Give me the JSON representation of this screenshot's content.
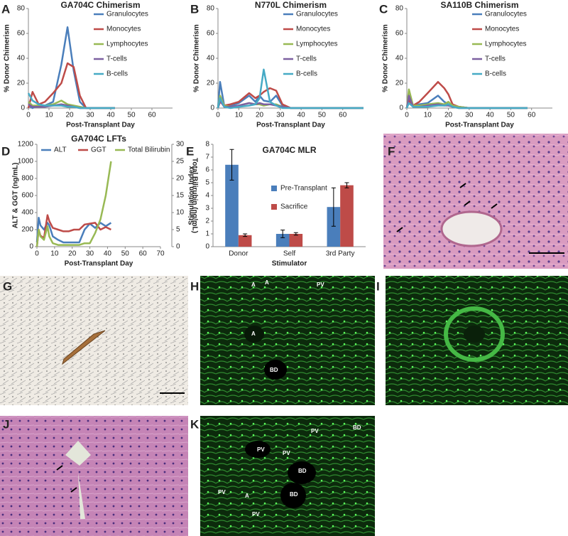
{
  "chart_data": [
    {
      "type": "line",
      "title": "GA704C Chimerism",
      "xlabel": "Post-Transplant Day",
      "ylabel": "% Donor Chimerism",
      "x": [
        0,
        2,
        5,
        8,
        12,
        16,
        19,
        22,
        25,
        28,
        31,
        35,
        42
      ],
      "xlim": [
        0,
        70
      ],
      "xticks": [
        0,
        10,
        20,
        30,
        40,
        50,
        60
      ],
      "ylim": [
        0,
        80
      ],
      "yticks": [
        0,
        20,
        40,
        60,
        80
      ],
      "legend": "upper right",
      "series": [
        {
          "name": "Granulocytes",
          "color": "#4a7ebb",
          "values": [
            2,
            0,
            2,
            2,
            5,
            35,
            65,
            30,
            5,
            0,
            0,
            0,
            0
          ]
        },
        {
          "name": "Monocytes",
          "color": "#be4b48",
          "values": [
            0,
            13,
            3,
            5,
            12,
            20,
            36,
            33,
            10,
            0,
            0,
            0,
            0
          ]
        },
        {
          "name": "Lymphocytes",
          "color": "#98b954",
          "values": [
            5,
            2,
            2,
            2,
            3,
            6,
            3,
            2,
            1,
            0,
            0,
            0,
            0
          ]
        },
        {
          "name": "T-cells",
          "color": "#7d60a0",
          "values": [
            3,
            1,
            1,
            1,
            2,
            3,
            2,
            1,
            0,
            0,
            0,
            0,
            0
          ]
        },
        {
          "name": "B-cells",
          "color": "#46aac5",
          "values": [
            12,
            6,
            3,
            2,
            2,
            2,
            1,
            1,
            0,
            0,
            0,
            0,
            0
          ]
        }
      ]
    },
    {
      "type": "line",
      "title": "N770L Chimerism",
      "xlabel": "Post-Transplant Day",
      "ylabel": "% Donor Chimerism",
      "x": [
        0,
        1,
        3,
        6,
        10,
        15,
        18,
        20,
        22,
        25,
        28,
        31,
        35,
        42,
        50,
        70
      ],
      "xlim": [
        0,
        70
      ],
      "xticks": [
        0,
        10,
        20,
        30,
        40,
        50,
        60
      ],
      "ylim": [
        0,
        80
      ],
      "yticks": [
        0,
        20,
        40,
        60,
        80
      ],
      "legend": "upper right",
      "series": [
        {
          "name": "Granulocytes",
          "color": "#4a7ebb",
          "values": [
            0,
            21,
            2,
            2,
            4,
            10,
            5,
            10,
            6,
            5,
            10,
            2,
            0,
            0,
            0,
            0
          ]
        },
        {
          "name": "Monocytes",
          "color": "#be4b48",
          "values": [
            0,
            5,
            2,
            3,
            5,
            12,
            8,
            10,
            13,
            16,
            14,
            3,
            0,
            0,
            0,
            0
          ]
        },
        {
          "name": "Lymphocytes",
          "color": "#98b954",
          "values": [
            0,
            10,
            2,
            1,
            2,
            4,
            3,
            3,
            2,
            3,
            3,
            1,
            0,
            0,
            0,
            0
          ]
        },
        {
          "name": "T-cells",
          "color": "#7d60a0",
          "values": [
            0,
            6,
            1,
            1,
            2,
            4,
            3,
            4,
            3,
            3,
            2,
            1,
            0,
            0,
            0,
            0
          ]
        },
        {
          "name": "B-cells",
          "color": "#46aac5",
          "values": [
            0,
            8,
            1,
            0,
            1,
            2,
            3,
            8,
            31,
            5,
            2,
            0,
            0,
            0,
            0,
            0
          ]
        }
      ]
    },
    {
      "type": "line",
      "title": "SA110B Chimerism",
      "xlabel": "Post-Transplant Day",
      "ylabel": "% Donor Chimerism",
      "x": [
        0,
        1,
        3,
        6,
        10,
        15,
        18,
        20,
        22,
        25,
        30,
        40,
        58
      ],
      "xlim": [
        0,
        70
      ],
      "xticks": [
        0,
        10,
        20,
        30,
        40,
        50,
        60
      ],
      "ylim": [
        0,
        80
      ],
      "yticks": [
        0,
        20,
        40,
        60,
        80
      ],
      "legend": "upper right",
      "series": [
        {
          "name": "Granulocytes",
          "color": "#4a7ebb",
          "values": [
            0,
            8,
            2,
            3,
            4,
            10,
            5,
            3,
            2,
            1,
            0,
            0,
            0
          ]
        },
        {
          "name": "Monocytes",
          "color": "#be4b48",
          "values": [
            0,
            6,
            2,
            5,
            12,
            21,
            16,
            11,
            3,
            1,
            0,
            0,
            0
          ]
        },
        {
          "name": "Lymphocytes",
          "color": "#98b954",
          "values": [
            0,
            15,
            2,
            2,
            3,
            4,
            3,
            5,
            2,
            1,
            0,
            0,
            0
          ]
        },
        {
          "name": "T-cells",
          "color": "#7d60a0",
          "values": [
            0,
            10,
            1,
            1,
            2,
            3,
            2,
            2,
            1,
            0,
            0,
            0,
            0
          ]
        },
        {
          "name": "B-cells",
          "color": "#46aac5",
          "values": [
            0,
            4,
            1,
            1,
            1,
            2,
            2,
            3,
            1,
            0,
            0,
            0,
            0
          ]
        }
      ]
    },
    {
      "type": "line",
      "title": "GA704C LFTs",
      "xlabel": "Post-Transplant Day",
      "ylabel": "ALT & GGT (ng/mL)",
      "y2label": "Total Bilirubin (ng/mL)",
      "x": [
        0,
        1,
        2,
        4,
        6,
        7,
        9,
        12,
        15,
        18,
        21,
        24,
        27,
        30,
        33,
        36,
        39,
        42
      ],
      "xlim": [
        0,
        70
      ],
      "xticks": [
        0,
        10,
        20,
        30,
        40,
        50,
        60,
        70
      ],
      "ylim": [
        0,
        1200
      ],
      "yticks": [
        0,
        200,
        400,
        600,
        800,
        1000,
        1200
      ],
      "y2lim": [
        0,
        30
      ],
      "y2ticks": [
        0,
        5,
        10,
        15,
        20,
        25,
        30
      ],
      "legend": "top",
      "series": [
        {
          "name": "ALT",
          "color": "#4a7ebb",
          "values": [
            50,
            340,
            250,
            200,
            280,
            250,
            120,
            80,
            50,
            50,
            50,
            50,
            200,
            270,
            220,
            280,
            240,
            280
          ]
        },
        {
          "name": "GGT",
          "color": "#be4b48",
          "values": [
            0,
            200,
            130,
            100,
            370,
            300,
            220,
            200,
            180,
            180,
            200,
            200,
            260,
            270,
            280,
            200,
            230,
            200
          ]
        },
        {
          "name": "Total Bilirubin",
          "color": "#98b954",
          "axis": "y2",
          "values": [
            0,
            5,
            3,
            2,
            6,
            3,
            1,
            0.5,
            0.5,
            0.5,
            0.5,
            0.5,
            1,
            1,
            4,
            8,
            15,
            25
          ]
        }
      ]
    },
    {
      "type": "bar",
      "title": "GA704C MLR",
      "xlabel": "Stimulator",
      "ylabel": "Stimulation Index",
      "categories": [
        "Donor",
        "Self",
        "3rd Party"
      ],
      "ylim": [
        0,
        8
      ],
      "yticks": [
        0,
        1,
        2,
        3,
        4,
        5,
        6,
        7,
        8
      ],
      "legend": "right",
      "series": [
        {
          "name": "Pre-Transplant",
          "color": "#4a7ebb",
          "values": [
            6.4,
            1.0,
            3.1
          ],
          "errors": [
            1.2,
            0.3,
            1.5
          ]
        },
        {
          "name": "Sacrifice",
          "color": "#be4b48",
          "values": [
            0.9,
            1.0,
            4.8
          ],
          "errors": [
            0.1,
            0.1,
            0.2
          ]
        }
      ]
    }
  ],
  "panel_letters": [
    "A",
    "B",
    "C",
    "D",
    "E",
    "F",
    "G",
    "H",
    "I",
    "J",
    "K"
  ],
  "image_labels": {
    "H": [
      "A",
      "A",
      "PV",
      "A",
      "BD"
    ],
    "K": [
      "PV",
      "BD",
      "PV",
      "PV",
      "BD",
      "PV",
      "A",
      "BD",
      "PV"
    ]
  }
}
